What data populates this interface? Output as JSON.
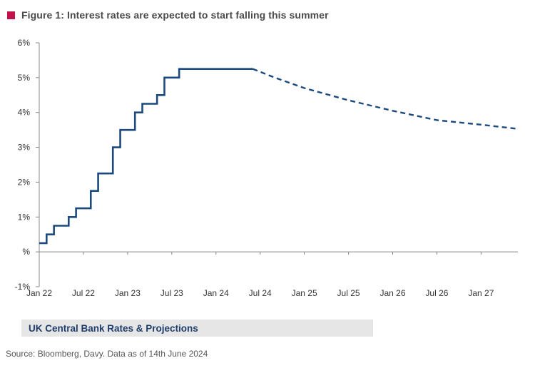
{
  "header": {
    "title": "Figure 1: Interest rates are expected to start falling this summer",
    "marker_color": "#c2114b"
  },
  "caption": {
    "text": "UK Central Bank Rates & Projections",
    "bg_color": "#e6e6e6"
  },
  "source": {
    "text": "Source: Bloomberg, Davy. Data as of 14th June 2024"
  },
  "chart_data": {
    "type": "line",
    "title": "UK Central Bank Rates & Projections",
    "xlabel": "",
    "ylabel": "",
    "ylim": [
      -1,
      6
    ],
    "yticks": [
      -1,
      0,
      1,
      2,
      3,
      4,
      5,
      6
    ],
    "ytick_labels": [
      "-1%",
      "%",
      "1%",
      "2%",
      "3%",
      "4%",
      "5%",
      "6%"
    ],
    "xlim": [
      "2022-01",
      "2027-06"
    ],
    "xticks": [
      "2022-01",
      "2022-07",
      "2023-01",
      "2023-07",
      "2024-01",
      "2024-07",
      "2025-01",
      "2025-07",
      "2026-01",
      "2026-07",
      "2027-01"
    ],
    "xtick_labels": [
      "Jan 22",
      "Jul 22",
      "Jan 23",
      "Jul 23",
      "Jan 24",
      "Jul 24",
      "Jan 25",
      "Jul 25",
      "Jan 26",
      "Jul 26",
      "Jan 27"
    ],
    "grid": false,
    "line_color": "#1c4a7e",
    "series": [
      {
        "style": "step-solid",
        "x": [
          "2022-01",
          "2022-02",
          "2022-03",
          "2022-05",
          "2022-06",
          "2022-08",
          "2022-09",
          "2022-11",
          "2022-12",
          "2023-02",
          "2023-03",
          "2023-05",
          "2023-06",
          "2023-08",
          "2024-06"
        ],
        "y": [
          0.25,
          0.5,
          0.75,
          1.0,
          1.25,
          1.75,
          2.25,
          3.0,
          3.5,
          4.0,
          4.25,
          4.5,
          5.0,
          5.25,
          5.25
        ]
      },
      {
        "style": "dashed",
        "x": [
          "2024-06",
          "2024-09",
          "2025-01",
          "2025-07",
          "2026-01",
          "2026-07",
          "2027-01",
          "2027-06"
        ],
        "y": [
          5.25,
          5.0,
          4.7,
          4.35,
          4.05,
          3.78,
          3.65,
          3.53
        ]
      }
    ]
  }
}
